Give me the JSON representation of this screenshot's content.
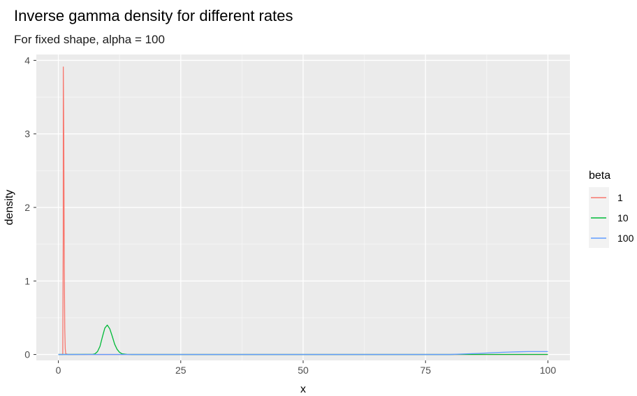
{
  "title": "Inverse gamma density for different rates",
  "subtitle": "For fixed shape, alpha = 100",
  "chart_data": {
    "type": "line",
    "title": "Inverse gamma density for different rates",
    "subtitle": "For fixed shape, alpha = 100",
    "xlabel": "x",
    "ylabel": "density",
    "xlim": [
      -4.5,
      104.5
    ],
    "ylim": [
      -0.08,
      4.08
    ],
    "x_ticks": [
      0,
      25,
      50,
      75,
      100
    ],
    "y_ticks": [
      0,
      1,
      2,
      3,
      4
    ],
    "x_tick_labels": [
      "0",
      "25",
      "50",
      "75",
      "100"
    ],
    "y_tick_labels": [
      "0",
      "1",
      "2",
      "3",
      "4"
    ],
    "grid": true,
    "background": "#ebebeb",
    "legend": {
      "title": "beta",
      "position": "right"
    },
    "series": [
      {
        "name": "1",
        "color": "#f8766d",
        "x": [
          0,
          0.5,
          0.9,
          1.0,
          1.01,
          1.11,
          1.21,
          1.31,
          1.41,
          1.51,
          2,
          100
        ],
        "y": [
          0,
          0,
          0,
          1.62,
          3.91,
          2.99,
          1.2,
          0.35,
          0.08,
          0.01,
          0,
          0
        ]
      },
      {
        "name": "10",
        "color": "#00ba38",
        "x": [
          0,
          7,
          7.5,
          8,
          8.5,
          9,
          9.5,
          10,
          10.5,
          11,
          11.5,
          12,
          12.5,
          13,
          14,
          15,
          80,
          81,
          82,
          83,
          85,
          87,
          88,
          90,
          92,
          94,
          96,
          98,
          100
        ],
        "y": [
          0,
          0.002,
          0.01,
          0.04,
          0.11,
          0.24,
          0.36,
          0.4,
          0.35,
          0.25,
          0.14,
          0.07,
          0.03,
          0.01,
          0.002,
          0,
          0,
          0.001,
          0.001,
          0.001,
          0.001,
          0.001,
          0.001,
          0.001,
          0.001,
          0.001,
          0.001,
          0.001,
          0.001
        ]
      },
      {
        "name": "100",
        "color": "#619cff",
        "x": [
          0,
          80,
          82,
          84,
          86,
          88,
          90,
          92,
          94,
          96,
          98,
          100
        ],
        "y": [
          0,
          0.0,
          0.005,
          0.01,
          0.015,
          0.022,
          0.028,
          0.033,
          0.037,
          0.04,
          0.04,
          0.04
        ]
      }
    ]
  }
}
